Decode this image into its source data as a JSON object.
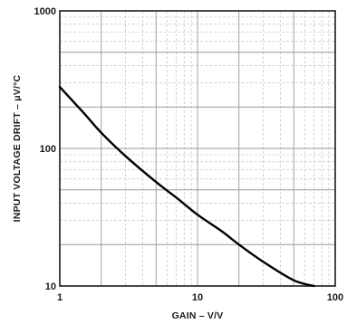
{
  "chart_data": {
    "type": "line",
    "xlabel": "GAIN – V/V",
    "ylabel": "INPUT VOLTAGE DRIFT – μV/°C",
    "x_scale": "log",
    "y_scale": "log",
    "xlim": [
      1,
      100
    ],
    "ylim": [
      10,
      1000
    ],
    "x_ticks": [
      "1",
      "10",
      "100"
    ],
    "y_ticks": [
      "10",
      "100",
      "1000"
    ],
    "grid": true,
    "series": [
      {
        "x": [
          1,
          1.5,
          2,
          3,
          5,
          7,
          10,
          15,
          20,
          30,
          50,
          70
        ],
        "y": [
          280,
          180,
          130,
          88,
          57,
          44,
          33,
          25,
          20,
          15,
          11,
          10
        ]
      }
    ]
  }
}
